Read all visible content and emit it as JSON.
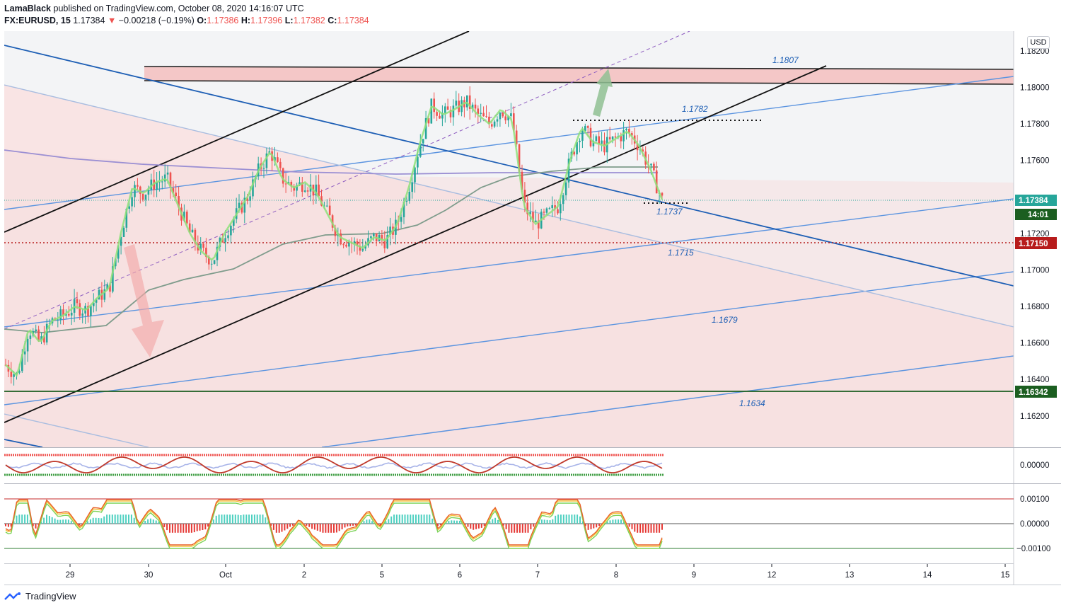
{
  "header": {
    "author": "LamaBlack",
    "published_text": "published on TradingView.com, October 08, 2020 14:16:07 UTC",
    "symbol": "FX:EURUSD, 15",
    "last": "1.17384",
    "change": "−0.00218 (−0.19%)",
    "o_label": "O:",
    "o_value": "1.17386",
    "h_label": "H:",
    "h_value": "1.17396",
    "l_label": "L:",
    "l_value": "1.17382",
    "c_label": "C:",
    "c_value": "1.17384"
  },
  "currency_button": "USD",
  "footer": {
    "brand": "TradingView"
  },
  "colors": {
    "up": "#26a69a",
    "down": "#ef5350",
    "trend_blue": "#1e5fb5",
    "light_blue": "#5b94e0",
    "zone_red": "#f4c7c7",
    "green_level": "#1b5e20"
  },
  "chart_data": {
    "type": "candlestick",
    "symbol": "EURUSD",
    "timeframe": "15",
    "price_axis": {
      "ticks": [
        "1.18200",
        "1.18000",
        "1.17800",
        "1.17600",
        "1.17200",
        "1.17000",
        "1.16800",
        "1.16600",
        "1.16400",
        "1.16200"
      ],
      "values": [
        1.182,
        1.18,
        1.178,
        1.176,
        1.172,
        1.17,
        1.168,
        1.166,
        1.164,
        1.162
      ],
      "range": [
        1.1605,
        1.1835
      ]
    },
    "time_axis": {
      "ticks": [
        "29",
        "30",
        "Oct",
        "2",
        "5",
        "6",
        "7",
        "8",
        "9",
        "12",
        "13",
        "14",
        "15"
      ]
    },
    "price_tags": [
      {
        "label": "1.17384",
        "value": 1.17384,
        "color": "#26a69a"
      },
      {
        "label": "14:01",
        "color": "#1b5e20"
      },
      {
        "label": "1.17150",
        "value": 1.1715,
        "color": "#b71c1c"
      },
      {
        "label": "1.16342",
        "value": 1.16342,
        "color": "#1b5e20"
      }
    ],
    "level_labels": [
      {
        "text": "1.1807",
        "value": 1.1807
      },
      {
        "text": "1.1782",
        "value": 1.1782
      },
      {
        "text": "1.1737",
        "value": 1.1737
      },
      {
        "text": "1.1715",
        "value": 1.1715
      },
      {
        "text": "1.1679",
        "value": 1.1679
      },
      {
        "text": "1.1634",
        "value": 1.1634
      }
    ],
    "resistance_zone": [
      1.1802,
      1.181
    ],
    "close_series": [
      1.1648,
      1.1642,
      1.1668,
      1.166,
      1.1672,
      1.1675,
      1.168,
      1.1678,
      1.1685,
      1.169,
      1.172,
      1.1745,
      1.1742,
      1.1748,
      1.175,
      1.1735,
      1.172,
      1.171,
      1.1705,
      1.172,
      1.173,
      1.174,
      1.1755,
      1.1765,
      1.175,
      1.1745,
      1.1748,
      1.1742,
      1.173,
      1.1718,
      1.1715,
      1.1712,
      1.1718,
      1.1716,
      1.1725,
      1.1745,
      1.177,
      1.179,
      1.1785,
      1.1788,
      1.1792,
      1.1785,
      1.178,
      1.1788,
      1.1782,
      1.1735,
      1.1725,
      1.173,
      1.1735,
      1.176,
      1.1778,
      1.177,
      1.1768,
      1.1772,
      1.1776,
      1.1768,
      1.1755,
      1.17384
    ],
    "indicator_1": {
      "ticks": [
        "0.00000"
      ],
      "values": [
        0
      ]
    },
    "indicator_2": {
      "ticks": [
        "0.00100",
        "0.00000",
        "−0.00100"
      ],
      "values": [
        0.001,
        0,
        -0.001
      ]
    }
  }
}
